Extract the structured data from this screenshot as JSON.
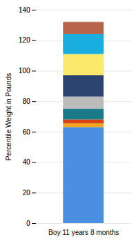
{
  "chart_data": {
    "type": "bar",
    "stacked": true,
    "categories": [
      "Boy 11 years 8 months"
    ],
    "series": [
      {
        "color": "#4A8FE0",
        "values": [
          63
        ]
      },
      {
        "color": "#F5A623",
        "values": [
          2.5
        ]
      },
      {
        "color": "#D94010",
        "values": [
          2.5
        ]
      },
      {
        "color": "#1A7A8A",
        "values": [
          7
        ]
      },
      {
        "color": "#BBBBBB",
        "values": [
          8
        ]
      },
      {
        "color": "#2B4470",
        "values": [
          14
        ]
      },
      {
        "color": "#FAE96A",
        "values": [
          14
        ]
      },
      {
        "color": "#1AAEE0",
        "values": [
          13
        ]
      },
      {
        "color": "#B8644A",
        "values": [
          8
        ]
      }
    ],
    "ylabel": "Percentile Weight in Pounds",
    "ylim": [
      0,
      140
    ],
    "yticks": [
      0,
      20,
      40,
      60,
      80,
      100,
      120,
      140
    ],
    "grid": true
  }
}
